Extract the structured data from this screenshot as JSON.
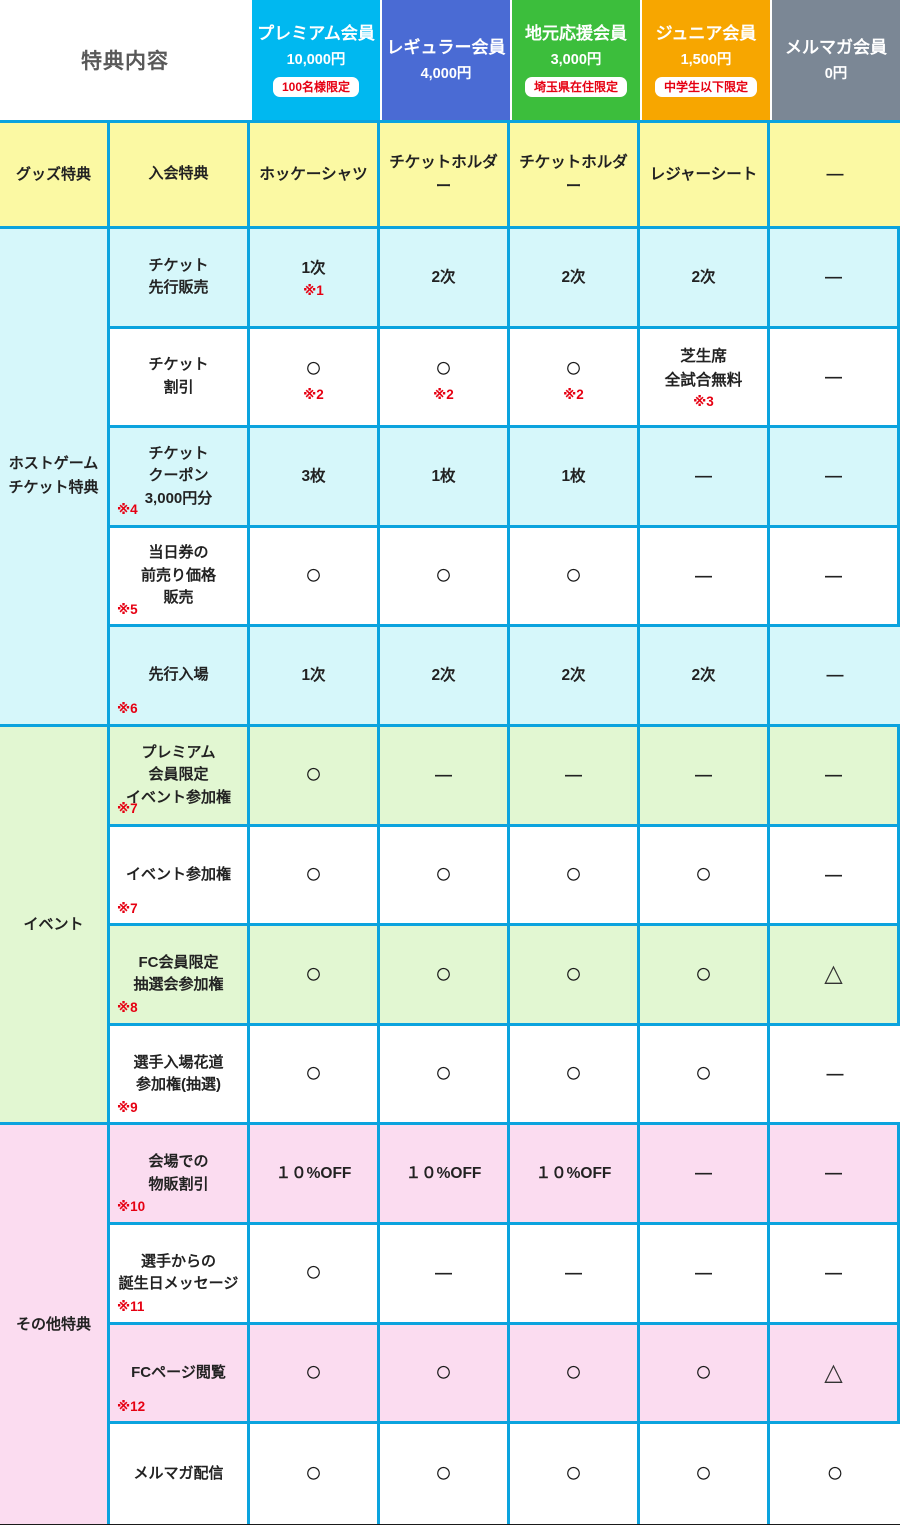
{
  "header": {
    "title": "特典内容",
    "columns": [
      {
        "name": "プレミアム会員",
        "price": "10,000円",
        "badge": "100名様限定",
        "color": "#00b8f0"
      },
      {
        "name": "レギュラー会員",
        "price": "4,000円",
        "badge": "",
        "color": "#4a6bd4"
      },
      {
        "name": "地元応援会員",
        "price": "3,000円",
        "badge": "埼玉県在住限定",
        "color": "#3cbe3c"
      },
      {
        "name": "ジュニア会員",
        "price": "1,500円",
        "badge": "中学生以下限定",
        "color": "#f7a600"
      },
      {
        "name": "メルマガ会員",
        "price": "0円",
        "badge": "",
        "color": "#7b8795"
      }
    ]
  },
  "colors": {
    "grid_border": "#0ba3de",
    "bottom_border": "#1a1a1a",
    "note_red": "#e60012",
    "goods_section": "#fbf9a3",
    "ticket_section": "#d6f7fa",
    "event_section": "#e2f7d2",
    "other_section": "#fbdcf0"
  },
  "sections": [
    {
      "category": "グッズ特典",
      "color": "#fbf9a3",
      "rows": [
        {
          "label": "入会特典",
          "note": "",
          "cells": [
            {
              "value": "ホッケーシャツ",
              "note": ""
            },
            {
              "value": "チケットホルダー",
              "note": ""
            },
            {
              "value": "チケットホルダー",
              "note": ""
            },
            {
              "value": "レジャーシート",
              "note": ""
            },
            {
              "value": "—",
              "note": ""
            }
          ]
        }
      ]
    },
    {
      "category": "ホストゲーム\nチケット特典",
      "color": "#d6f7fa",
      "rows": [
        {
          "label": "チケット\n先行販売",
          "note": "",
          "cells": [
            {
              "value": "1次",
              "note": "※1"
            },
            {
              "value": "2次",
              "note": ""
            },
            {
              "value": "2次",
              "note": ""
            },
            {
              "value": "2次",
              "note": ""
            },
            {
              "value": "—",
              "note": ""
            }
          ]
        },
        {
          "label": "チケット\n割引",
          "note": "",
          "cells": [
            {
              "value": "○",
              "note": "※2"
            },
            {
              "value": "○",
              "note": "※2"
            },
            {
              "value": "○",
              "note": "※2"
            },
            {
              "value": "芝生席\n全試合無料",
              "note": "※3"
            },
            {
              "value": "—",
              "note": ""
            }
          ]
        },
        {
          "label": "チケット\nクーポン\n3,000円分",
          "note": "※4",
          "cells": [
            {
              "value": "3枚",
              "note": ""
            },
            {
              "value": "1枚",
              "note": ""
            },
            {
              "value": "1枚",
              "note": ""
            },
            {
              "value": "—",
              "note": ""
            },
            {
              "value": "—",
              "note": ""
            }
          ]
        },
        {
          "label": "当日券の\n前売り価格\n販売",
          "note": "※5",
          "cells": [
            {
              "value": "○",
              "note": ""
            },
            {
              "value": "○",
              "note": ""
            },
            {
              "value": "○",
              "note": ""
            },
            {
              "value": "—",
              "note": ""
            },
            {
              "value": "—",
              "note": ""
            }
          ]
        },
        {
          "label": "先行入場",
          "note": "※6",
          "cells": [
            {
              "value": "1次",
              "note": ""
            },
            {
              "value": "2次",
              "note": ""
            },
            {
              "value": "2次",
              "note": ""
            },
            {
              "value": "2次",
              "note": ""
            },
            {
              "value": "—",
              "note": ""
            }
          ]
        }
      ]
    },
    {
      "category": "イベント",
      "color": "#e2f7d2",
      "rows": [
        {
          "label": "プレミアム\n会員限定\nイベント参加権",
          "note": "※7",
          "cells": [
            {
              "value": "○",
              "note": ""
            },
            {
              "value": "—",
              "note": ""
            },
            {
              "value": "—",
              "note": ""
            },
            {
              "value": "—",
              "note": ""
            },
            {
              "value": "—",
              "note": ""
            }
          ]
        },
        {
          "label": "イベント参加権",
          "note": "※7",
          "cells": [
            {
              "value": "○",
              "note": ""
            },
            {
              "value": "○",
              "note": ""
            },
            {
              "value": "○",
              "note": ""
            },
            {
              "value": "○",
              "note": ""
            },
            {
              "value": "—",
              "note": ""
            }
          ]
        },
        {
          "label": "FC会員限定\n抽選会参加権",
          "note": "※8",
          "cells": [
            {
              "value": "○",
              "note": ""
            },
            {
              "value": "○",
              "note": ""
            },
            {
              "value": "○",
              "note": ""
            },
            {
              "value": "○",
              "note": ""
            },
            {
              "value": "△",
              "note": ""
            }
          ]
        },
        {
          "label": "選手入場花道\n参加権(抽選)",
          "note": "※9",
          "cells": [
            {
              "value": "○",
              "note": ""
            },
            {
              "value": "○",
              "note": ""
            },
            {
              "value": "○",
              "note": ""
            },
            {
              "value": "○",
              "note": ""
            },
            {
              "value": "—",
              "note": ""
            }
          ]
        }
      ]
    },
    {
      "category": "その他特典",
      "color": "#fbdcf0",
      "rows": [
        {
          "label": "会場での\n物販割引",
          "note": "※10",
          "cells": [
            {
              "value": "１０%OFF",
              "note": ""
            },
            {
              "value": "１０%OFF",
              "note": ""
            },
            {
              "value": "１０%OFF",
              "note": ""
            },
            {
              "value": "—",
              "note": ""
            },
            {
              "value": "—",
              "note": ""
            }
          ]
        },
        {
          "label": "選手からの\n誕生日メッセージ",
          "note": "※11",
          "cells": [
            {
              "value": "○",
              "note": ""
            },
            {
              "value": "—",
              "note": ""
            },
            {
              "value": "—",
              "note": ""
            },
            {
              "value": "—",
              "note": ""
            },
            {
              "value": "—",
              "note": ""
            }
          ]
        },
        {
          "label": "FCページ閲覧",
          "note": "※12",
          "cells": [
            {
              "value": "○",
              "note": ""
            },
            {
              "value": "○",
              "note": ""
            },
            {
              "value": "○",
              "note": ""
            },
            {
              "value": "○",
              "note": ""
            },
            {
              "value": "△",
              "note": ""
            }
          ]
        },
        {
          "label": "メルマガ配信",
          "note": "",
          "cells": [
            {
              "value": "○",
              "note": ""
            },
            {
              "value": "○",
              "note": ""
            },
            {
              "value": "○",
              "note": ""
            },
            {
              "value": "○",
              "note": ""
            },
            {
              "value": "○",
              "note": ""
            }
          ]
        }
      ]
    }
  ]
}
